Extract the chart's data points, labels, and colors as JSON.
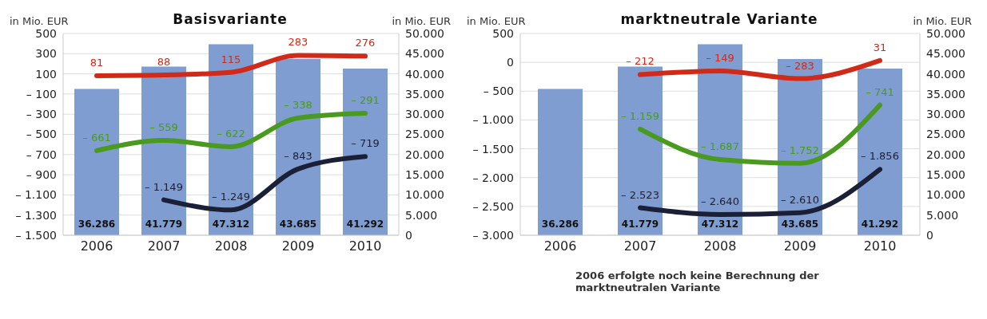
{
  "chart_data": [
    {
      "type": "bar",
      "title": "Basisvariante",
      "ylabel": "in Mio. EUR",
      "y2label": "in Mio. EUR",
      "categories": [
        "2006",
        "2007",
        "2008",
        "2009",
        "2010"
      ],
      "grid": "y",
      "legend": false,
      "ylim": [
        -1500,
        500
      ],
      "yticks": [
        {
          "value": 500,
          "label": "500"
        },
        {
          "value": 300,
          "label": "300"
        },
        {
          "value": 100,
          "label": "100"
        },
        {
          "value": -100,
          "label": "– 100"
        },
        {
          "value": -300,
          "label": "– 300"
        },
        {
          "value": -500,
          "label": "– 500"
        },
        {
          "value": -700,
          "label": "– 700"
        },
        {
          "value": -900,
          "label": "– 900"
        },
        {
          "value": -1100,
          "label": "– 1.100"
        },
        {
          "value": -1300,
          "label": "– 1.300"
        },
        {
          "value": -1500,
          "label": "– 1.500"
        }
      ],
      "y2lim": [
        0,
        50000
      ],
      "y2ticks": [
        {
          "value": 0,
          "label": "0"
        },
        {
          "value": 5000,
          "label": "5.000"
        },
        {
          "value": 10000,
          "label": "10.000"
        },
        {
          "value": 15000,
          "label": "15.000"
        },
        {
          "value": 20000,
          "label": "20.000"
        },
        {
          "value": 25000,
          "label": "25.000"
        },
        {
          "value": 30000,
          "label": "30.000"
        },
        {
          "value": 35000,
          "label": "35.000"
        },
        {
          "value": 40000,
          "label": "40.000"
        },
        {
          "value": 45000,
          "label": "45.000"
        },
        {
          "value": 50000,
          "label": "50.000"
        }
      ],
      "series": [
        {
          "axis": "y2",
          "color": "#7f9dd0",
          "values": [
            36286,
            41779,
            47312,
            43685,
            41292
          ],
          "value_labels": [
            "36.286",
            "41.779",
            "47.312",
            "43.685",
            "41.292"
          ]
        },
        {
          "type": "line",
          "axis": "y",
          "color": "#d22a18",
          "values": [
            81,
            88,
            115,
            283,
            276
          ],
          "value_labels": [
            "81",
            "88",
            "115",
            "283",
            "276"
          ]
        },
        {
          "type": "line",
          "axis": "y",
          "color": "#4a9a1f",
          "values": [
            -661,
            -559,
            -622,
            -338,
            -291
          ],
          "value_labels": [
            "– 661",
            "– 559",
            "– 622",
            "– 338",
            "– 291"
          ]
        },
        {
          "type": "line",
          "axis": "y",
          "color": "#1c2036",
          "values": [
            null,
            -1149,
            -1249,
            -843,
            -719
          ],
          "value_labels": [
            null,
            "– 1.149",
            "– 1.249",
            "– 843",
            "– 719"
          ]
        }
      ]
    },
    {
      "type": "bar",
      "title": "marktneutrale Variante",
      "ylabel": "in Mio. EUR",
      "y2label": "in Mio. EUR",
      "categories": [
        "2006",
        "2007",
        "2008",
        "2009",
        "2010"
      ],
      "grid": "y",
      "legend": false,
      "annotations": [
        "2006 erfolgte noch keine Berechnung der marktneutralen Variante"
      ],
      "ylim": [
        -3000,
        500
      ],
      "yticks": [
        {
          "value": 500,
          "label": "500"
        },
        {
          "value": 0,
          "label": "0"
        },
        {
          "value": -500,
          "label": "– 500"
        },
        {
          "value": -1000,
          "label": "– 1.000"
        },
        {
          "value": -1500,
          "label": "– 1.500"
        },
        {
          "value": -2000,
          "label": "– 2.000"
        },
        {
          "value": -2500,
          "label": "– 2.500"
        },
        {
          "value": -3000,
          "label": "– 3.000"
        }
      ],
      "y2lim": [
        0,
        50000
      ],
      "y2ticks": [
        {
          "value": 0,
          "label": "0"
        },
        {
          "value": 5000,
          "label": "5.000"
        },
        {
          "value": 10000,
          "label": "10.000"
        },
        {
          "value": 15000,
          "label": "15.000"
        },
        {
          "value": 20000,
          "label": "20.000"
        },
        {
          "value": 25000,
          "label": "25.000"
        },
        {
          "value": 30000,
          "label": "30.000"
        },
        {
          "value": 35000,
          "label": "35.000"
        },
        {
          "value": 40000,
          "label": "40.000"
        },
        {
          "value": 45000,
          "label": "45.000"
        },
        {
          "value": 50000,
          "label": "50.000"
        }
      ],
      "series": [
        {
          "axis": "y2",
          "color": "#7f9dd0",
          "values": [
            36286,
            41779,
            47312,
            43685,
            41292
          ],
          "value_labels": [
            "36.286",
            "41.779",
            "47.312",
            "43.685",
            "41.292"
          ]
        },
        {
          "type": "line",
          "axis": "y",
          "color": "#d22a18",
          "values": [
            null,
            -212,
            -149,
            -283,
            31
          ],
          "value_labels": [
            null,
            "– 212",
            "– 149",
            "– 283",
            "31"
          ]
        },
        {
          "type": "line",
          "axis": "y",
          "color": "#4a9a1f",
          "values": [
            null,
            -1159,
            -1687,
            -1752,
            -741
          ],
          "value_labels": [
            null,
            "– 1.159",
            "– 1.687",
            "– 1.752",
            "– 741"
          ]
        },
        {
          "type": "line",
          "axis": "y",
          "color": "#1c2036",
          "values": [
            null,
            -2523,
            -2640,
            -2610,
            -1856
          ],
          "value_labels": [
            null,
            "– 2.523",
            "– 2.640",
            "– 2.610",
            "– 1.856"
          ]
        }
      ]
    }
  ]
}
